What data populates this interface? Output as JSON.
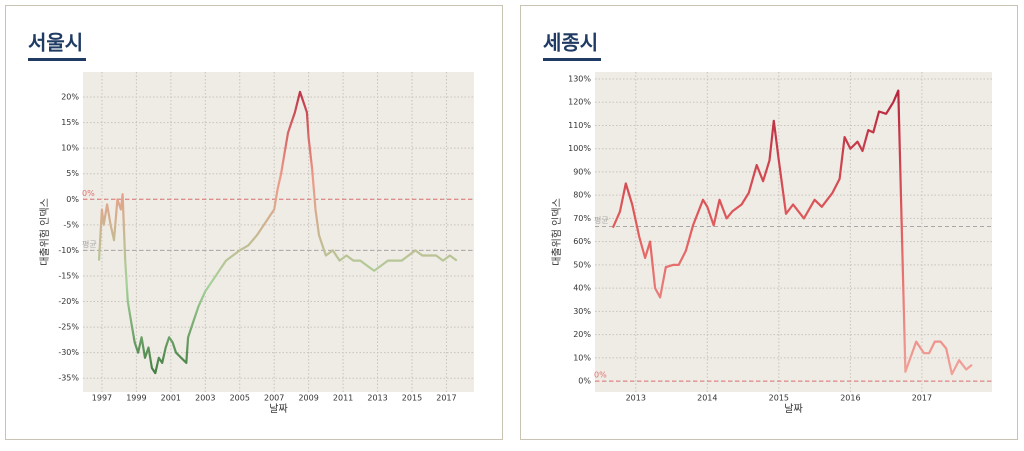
{
  "chart_data": [
    {
      "type": "line",
      "title": "서울시",
      "x_label": "날짜",
      "y_label": "대출위험 인덱스",
      "x": [
        1996.83,
        1997.0,
        1997.1,
        1997.3,
        1997.5,
        1997.7,
        1997.9,
        1998.1,
        1998.2,
        1998.35,
        1998.5,
        1998.7,
        1998.9,
        1999.1,
        1999.3,
        1999.5,
        1999.7,
        1999.9,
        2000.1,
        2000.3,
        2000.5,
        2000.7,
        2000.9,
        2001.1,
        2001.3,
        2001.6,
        2001.9,
        2002.0,
        2002.3,
        2002.6,
        2003.0,
        2003.4,
        2003.8,
        2004.2,
        2004.6,
        2005.0,
        2005.5,
        2006.0,
        2006.4,
        2006.8,
        2007.0,
        2007.2,
        2007.4,
        2007.6,
        2007.8,
        2008.0,
        2008.2,
        2008.5,
        2008.7,
        2008.9,
        2009.0,
        2009.2,
        2009.4,
        2009.6,
        2009.8,
        2010.0,
        2010.4,
        2010.8,
        2011.2,
        2011.6,
        2012.0,
        2012.4,
        2012.8,
        2013.2,
        2013.6,
        2014.0,
        2014.4,
        2014.8,
        2015.2,
        2015.6,
        2016.0,
        2016.4,
        2016.8,
        2017.2,
        2017.6
      ],
      "series": [
        {
          "name": "대출위험 인덱스",
          "values": [
            -12,
            -2,
            -5,
            -1,
            -5,
            -8,
            0,
            -2,
            1,
            -12,
            -20,
            -24,
            -28,
            -30,
            -27,
            -31,
            -29,
            -33,
            -34,
            -31,
            -32,
            -29,
            -27,
            -28,
            -30,
            -31,
            -32,
            -27,
            -24,
            -21,
            -18,
            -16,
            -14,
            -12,
            -11,
            -10,
            -9,
            -7,
            -5,
            -3,
            -2,
            2,
            5,
            9,
            13,
            15,
            17,
            21,
            19,
            17,
            12,
            6,
            -2,
            -7,
            -9,
            -11,
            -10,
            -12,
            -11,
            -12,
            -12,
            -13,
            -14,
            -13,
            -12,
            -12,
            -12,
            -11,
            -10,
            -11,
            -11,
            -11,
            -12,
            -11,
            -12
          ]
        }
      ],
      "colors": [
        "#2f6b30",
        "#a5d39a",
        "#ef9a88",
        "#b41f3a"
      ],
      "xlim": [
        1995.9,
        2018.6
      ],
      "xticks": [
        1997,
        1999,
        2001,
        2003,
        2005,
        2007,
        2009,
        2011,
        2013,
        2015,
        2017
      ],
      "ylim": [
        -37.7,
        24.9
      ],
      "yticks": [
        {
          "value": -35,
          "label": "-35%"
        },
        {
          "value": -30,
          "label": "-30%"
        },
        {
          "value": -25,
          "label": "-25%"
        },
        {
          "value": -20,
          "label": "-20%"
        },
        {
          "value": -15,
          "label": "-15%"
        },
        {
          "value": -10,
          "label": "-10%"
        },
        {
          "value": -5,
          "label": "-5%"
        },
        {
          "value": 0,
          "label": "0%"
        },
        {
          "value": 5,
          "label": "5%"
        },
        {
          "value": 10,
          "label": "10%"
        },
        {
          "value": 15,
          "label": "15%"
        },
        {
          "value": 20,
          "label": "20%"
        }
      ],
      "reference_lines": [
        {
          "value": 0,
          "label": "0%",
          "color": "#e07070"
        },
        {
          "value": -10,
          "label": "평균",
          "color": "#a8a8a8"
        }
      ],
      "grid": true
    },
    {
      "type": "line",
      "title": "세종시",
      "x_label": "날짜",
      "y_label": "대출위험 인덱스",
      "x": [
        2012.68,
        2012.78,
        2012.86,
        2012.95,
        2013.05,
        2013.13,
        2013.2,
        2013.27,
        2013.34,
        2013.42,
        2013.52,
        2013.6,
        2013.7,
        2013.8,
        2013.94,
        2014.0,
        2014.09,
        2014.17,
        2014.27,
        2014.35,
        2014.48,
        2014.58,
        2014.69,
        2014.78,
        2014.87,
        2014.93,
        2015.0,
        2015.1,
        2015.2,
        2015.35,
        2015.5,
        2015.6,
        2015.75,
        2015.85,
        2015.92,
        2016.0,
        2016.1,
        2016.17,
        2016.25,
        2016.32,
        2016.4,
        2016.5,
        2016.6,
        2016.67,
        2016.77,
        2016.92,
        2017.03,
        2017.1,
        2017.18,
        2017.26,
        2017.34,
        2017.42,
        2017.52,
        2017.62,
        2017.7
      ],
      "series": [
        {
          "name": "대출위험 인덱스",
          "values": [
            66,
            73,
            85,
            76,
            62,
            53,
            60,
            40,
            36,
            49,
            50,
            50,
            56,
            67,
            78,
            75,
            67,
            78,
            70,
            73,
            76,
            81,
            93,
            86,
            95,
            112,
            95,
            72,
            76,
            70,
            78,
            75,
            81,
            87,
            105,
            100,
            103,
            99,
            108,
            107,
            116,
            115,
            120,
            125,
            4,
            17,
            12,
            12,
            17,
            17,
            14,
            3,
            9,
            5,
            7
          ]
        }
      ],
      "colors": [
        "#f2aaa0",
        "#e35f5f",
        "#b01f3a"
      ],
      "xlim": [
        2012.43,
        2017.98
      ],
      "xticks": [
        2013,
        2014,
        2015,
        2016,
        2017
      ],
      "ylim": [
        -4.7,
        133
      ],
      "yticks": [
        {
          "value": 0,
          "label": "0%"
        },
        {
          "value": 10,
          "label": "10%"
        },
        {
          "value": 20,
          "label": "20%"
        },
        {
          "value": 30,
          "label": "30%"
        },
        {
          "value": 40,
          "label": "40%"
        },
        {
          "value": 50,
          "label": "50%"
        },
        {
          "value": 60,
          "label": "60%"
        },
        {
          "value": 70,
          "label": "70%"
        },
        {
          "value": 80,
          "label": "80%"
        },
        {
          "value": 90,
          "label": "90%"
        },
        {
          "value": 100,
          "label": "100%"
        },
        {
          "value": 110,
          "label": "110%"
        },
        {
          "value": 120,
          "label": "120%"
        },
        {
          "value": 130,
          "label": "130%"
        }
      ],
      "reference_lines": [
        {
          "value": 0,
          "label": "0%",
          "color": "#e07070"
        },
        {
          "value": 66.5,
          "label": "평균",
          "color": "#a8a8a8"
        }
      ],
      "grid": true
    }
  ]
}
